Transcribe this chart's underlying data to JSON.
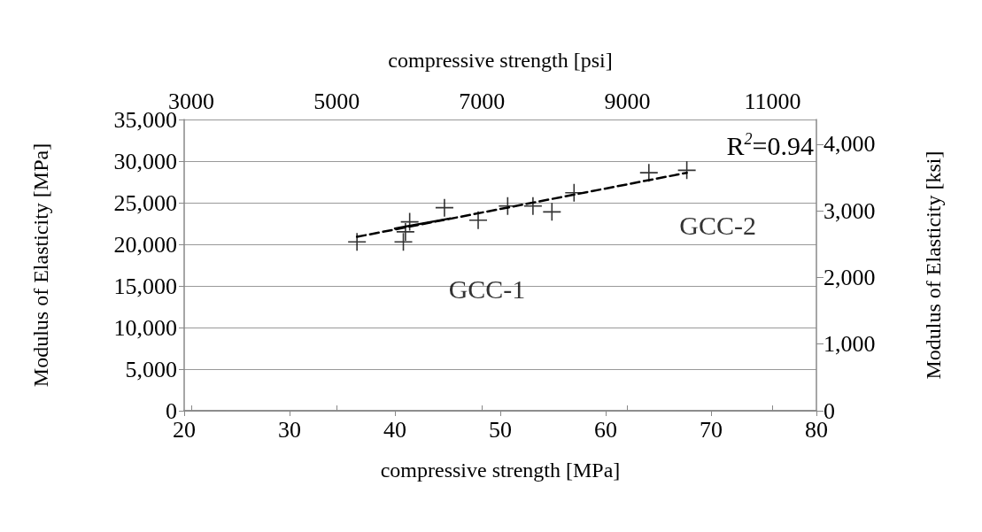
{
  "chart_data": {
    "type": "scatter",
    "xlabel": "compressive strength [MPa]",
    "x2label": "compressive strength [psi]",
    "ylabel": "Modulus of Elasticity [MPa]",
    "y2label": "Modulus of Elasticity [ksi]",
    "xlim": [
      20,
      80
    ],
    "xticks": [
      20,
      30,
      40,
      50,
      60,
      70,
      80
    ],
    "x2lim": [
      2901,
      11603
    ],
    "x2ticks": [
      3000,
      5000,
      7000,
      9000,
      11000
    ],
    "ylim": [
      0,
      35000
    ],
    "yticks": [
      0,
      {
        "value": 5000,
        "label": "5,000"
      },
      {
        "value": 10000,
        "label": "10,000"
      },
      {
        "value": 15000,
        "label": "15,000"
      },
      {
        "value": 20000,
        "label": "20,000"
      },
      {
        "value": 25000,
        "label": "25,000"
      },
      {
        "value": 30000,
        "label": "30,000"
      },
      {
        "value": 35000,
        "label": "35,000"
      }
    ],
    "y2lim": [
      0,
      4370
    ],
    "y2ticks": [
      0,
      {
        "value": 1000,
        "label": "1,000"
      },
      {
        "value": 2000,
        "label": "2,000"
      },
      {
        "value": 3000,
        "label": "3,000"
      },
      {
        "value": 4000,
        "label": "4,000"
      }
    ],
    "grid": "y",
    "legend": false,
    "series": [
      {
        "name": "GCC-1",
        "color": "#000000",
        "marker": "cross",
        "x": [
          36.4,
          40.8,
          41.0,
          41.4,
          44.7,
          47.9
        ],
        "values": [
          20300,
          20300,
          21500,
          22700,
          24400,
          22900
        ]
      },
      {
        "name": "GCC-2",
        "color": "#000000",
        "marker": "cross",
        "x": [
          50.7,
          53.1,
          54.9,
          57.0,
          64.1,
          67.7
        ],
        "values": [
          24600,
          24600,
          23900,
          26200,
          28600,
          28900
        ]
      },
      {
        "type": "line",
        "color": "#000000",
        "line_style": "dashed",
        "x": [
          36.4,
          67.7
        ],
        "values": [
          20900,
          28600
        ]
      },
      {
        "type": "line",
        "color": "#000000",
        "line_style": "solid",
        "x": [
          40.0,
          45.2
        ],
        "values": [
          21900,
          23100
        ]
      }
    ],
    "annotations": [
      "R$^{2}$=0.94"
    ]
  }
}
